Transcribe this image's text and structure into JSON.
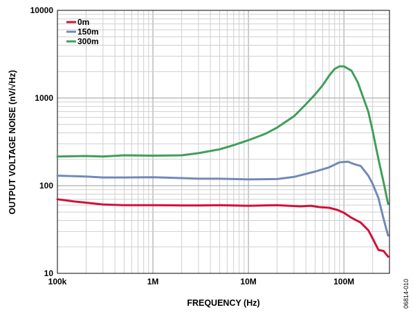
{
  "chart_data": {
    "type": "line",
    "title": "",
    "xlabel": "FREQUENCY (Hz)",
    "ylabel": "OUTPUT VOLTAGE NOISE (nV/√Hz)",
    "xscale": "log",
    "yscale": "log",
    "xlim": [
      100000,
      300000000
    ],
    "ylim": [
      10,
      10000
    ],
    "x_ticks": [
      {
        "value": 100000,
        "label": "100k"
      },
      {
        "value": 1000000,
        "label": "1M"
      },
      {
        "value": 10000000,
        "label": "10M"
      },
      {
        "value": 100000000,
        "label": "100M"
      }
    ],
    "y_ticks": [
      {
        "value": 10,
        "label": "10"
      },
      {
        "value": 100,
        "label": "100"
      },
      {
        "value": 1000,
        "label": "1000"
      },
      {
        "value": 10000,
        "label": "10000"
      }
    ],
    "grid": true,
    "legend_position": "top-left",
    "figure_id": "06814-010",
    "series": [
      {
        "name": "0m",
        "color": "#d0103a",
        "points": [
          [
            100000,
            70
          ],
          [
            150000,
            66
          ],
          [
            200000,
            64
          ],
          [
            300000,
            61
          ],
          [
            500000,
            60
          ],
          [
            1000000,
            60
          ],
          [
            2000000,
            59.5
          ],
          [
            3000000,
            59.5
          ],
          [
            5000000,
            60
          ],
          [
            10000000,
            59
          ],
          [
            20000000,
            60
          ],
          [
            35000000,
            58
          ],
          [
            45000000,
            59
          ],
          [
            55000000,
            57
          ],
          [
            70000000,
            56
          ],
          [
            85000000,
            53
          ],
          [
            100000000,
            49
          ],
          [
            120000000,
            43
          ],
          [
            150000000,
            38
          ],
          [
            180000000,
            31
          ],
          [
            200000000,
            25
          ],
          [
            230000000,
            18.5
          ],
          [
            260000000,
            18
          ],
          [
            290000000,
            15.5
          ]
        ]
      },
      {
        "name": "150m",
        "color": "#7189b8",
        "points": [
          [
            100000,
            130
          ],
          [
            200000,
            127
          ],
          [
            300000,
            124
          ],
          [
            500000,
            124
          ],
          [
            1000000,
            125
          ],
          [
            2000000,
            122
          ],
          [
            3000000,
            120
          ],
          [
            5000000,
            120
          ],
          [
            10000000,
            118
          ],
          [
            20000000,
            119
          ],
          [
            30000000,
            126
          ],
          [
            50000000,
            145
          ],
          [
            70000000,
            162
          ],
          [
            90000000,
            185
          ],
          [
            110000000,
            188
          ],
          [
            130000000,
            175
          ],
          [
            150000000,
            168
          ],
          [
            180000000,
            130
          ],
          [
            200000000,
            105
          ],
          [
            230000000,
            72
          ],
          [
            260000000,
            42
          ],
          [
            290000000,
            27
          ]
        ]
      },
      {
        "name": "300m",
        "color": "#3f9e58",
        "points": [
          [
            100000,
            215
          ],
          [
            200000,
            218
          ],
          [
            300000,
            215
          ],
          [
            500000,
            222
          ],
          [
            1000000,
            220
          ],
          [
            2000000,
            222
          ],
          [
            3000000,
            235
          ],
          [
            5000000,
            260
          ],
          [
            7000000,
            290
          ],
          [
            10000000,
            330
          ],
          [
            15000000,
            390
          ],
          [
            20000000,
            460
          ],
          [
            30000000,
            620
          ],
          [
            40000000,
            850
          ],
          [
            50000000,
            1100
          ],
          [
            60000000,
            1400
          ],
          [
            70000000,
            1800
          ],
          [
            80000000,
            2150
          ],
          [
            90000000,
            2300
          ],
          [
            100000000,
            2300
          ],
          [
            120000000,
            2050
          ],
          [
            140000000,
            1500
          ],
          [
            160000000,
            1000
          ],
          [
            180000000,
            700
          ],
          [
            200000000,
            420
          ],
          [
            230000000,
            200
          ],
          [
            260000000,
            110
          ],
          [
            290000000,
            62
          ]
        ]
      }
    ]
  }
}
